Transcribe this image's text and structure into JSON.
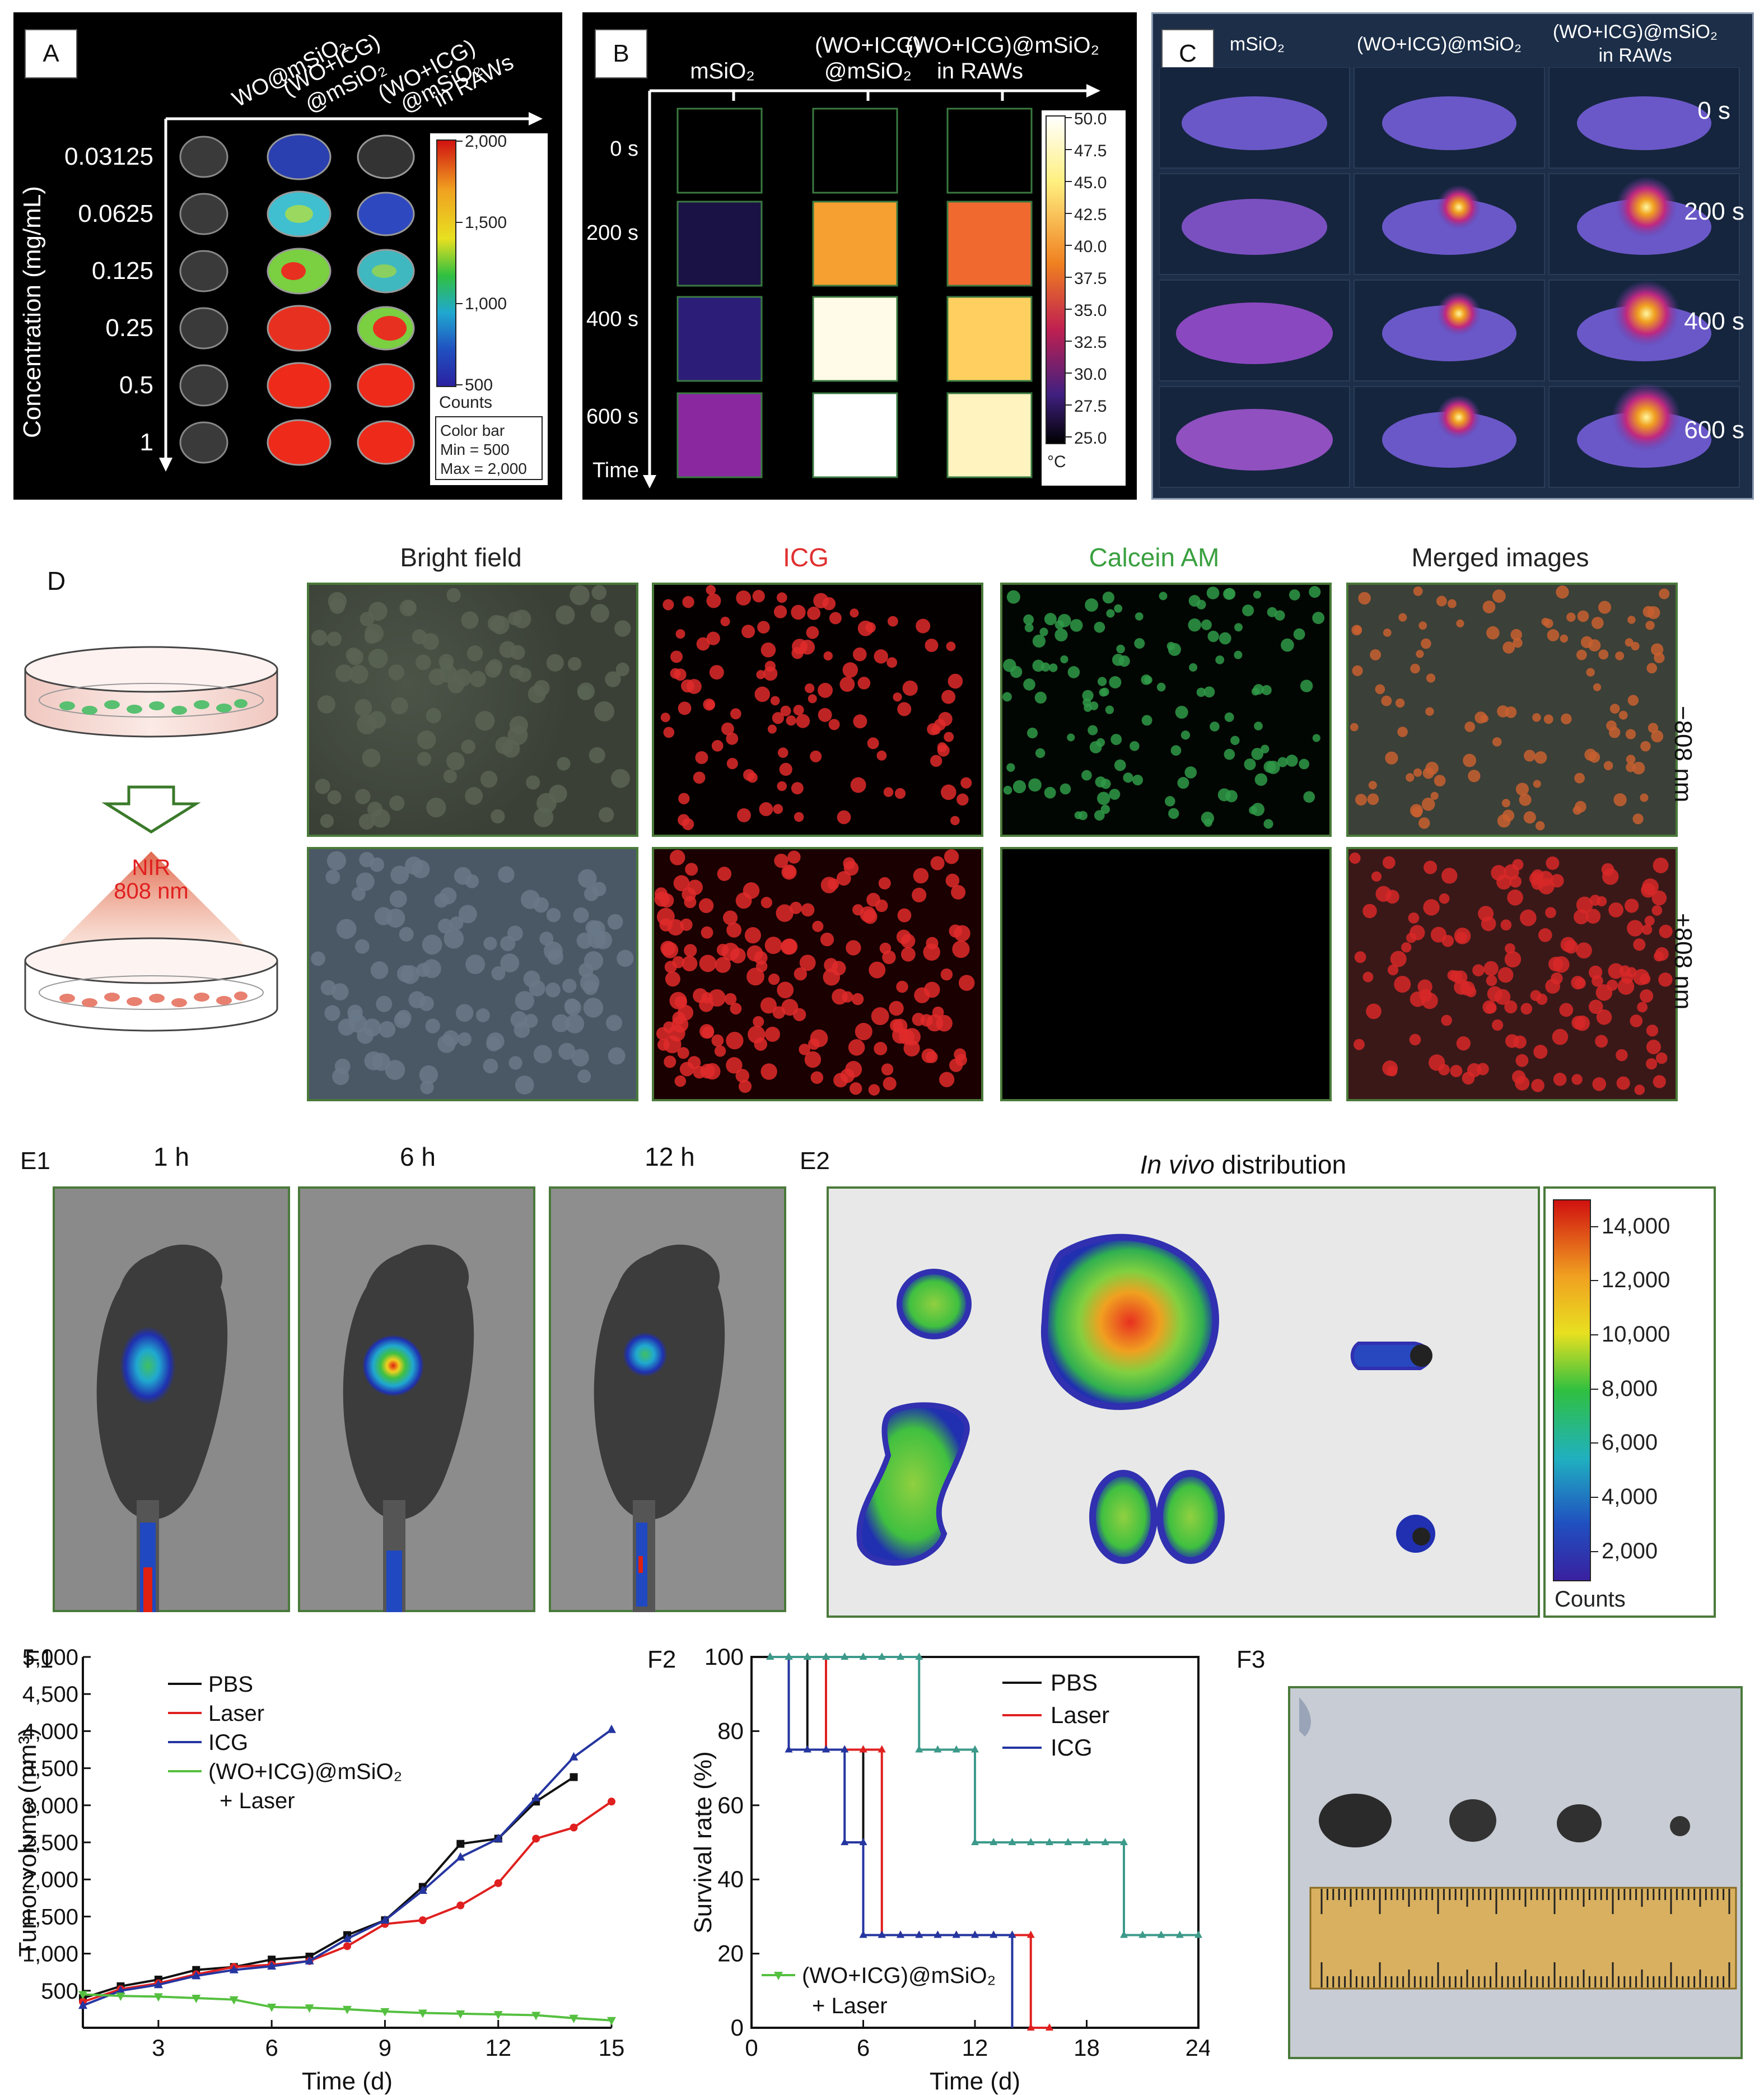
{
  "panelA": {
    "letter": "A",
    "columns": [
      "WO@mSiO₂",
      "(WO+ICG)\n@mSiO₂",
      "(WO+ICG)\n@mSiO₂\nin RAWs"
    ],
    "col1": "WO@mSiO₂",
    "col2a": "(WO+ICG)",
    "col2b": "@mSiO₂",
    "col3a": "(WO+ICG)",
    "col3b": "@mSiO₂",
    "col3c": "in RAWs",
    "ylabel": "Concentration (mg/mL)",
    "rows": [
      "0.03125",
      "0.0625",
      "0.125",
      "0.25",
      "0.5",
      "1"
    ],
    "colorbar_ticks": [
      "2,000",
      "1,500",
      "1,000",
      "500"
    ],
    "counts": "Counts",
    "legend_line1": "Color bar",
    "legend_line2": "Min = 500",
    "legend_line3": "Max = 2,000"
  },
  "panelB": {
    "letter": "B",
    "col1": "mSiO₂",
    "col2a": "(WO+ICG)",
    "col2b": "@mSiO₂",
    "col3a": "(WO+ICG)@mSiO₂",
    "col3b": "in RAWs",
    "rows": [
      "0 s",
      "200 s",
      "400 s",
      "600 s"
    ],
    "time": "Time",
    "colorbar_ticks": [
      "50.0",
      "47.5",
      "45.0",
      "42.5",
      "40.0",
      "37.5",
      "35.0",
      "32.5",
      "30.0",
      "27.5",
      "25.0"
    ],
    "unit": "°C"
  },
  "panelC": {
    "letter": "C",
    "col1": "mSiO₂",
    "col2": "(WO+ICG)@mSiO₂",
    "col3a": "(WO+ICG)@mSiO₂",
    "col3b": "in RAWs",
    "rows": [
      "0 s",
      "200 s",
      "400 s",
      "600 s"
    ]
  },
  "panelD": {
    "letter": "D",
    "headers": [
      "Bright field",
      "ICG",
      "Calcein AM",
      "Merged images"
    ],
    "header_colors": [
      "#222222",
      "#e03030",
      "#3aa040",
      "#222222"
    ],
    "row_minus": "−808 nm",
    "row_plus": "+808 nm",
    "nir_line1": "NIR",
    "nir_line2": "808 nm"
  },
  "panelE1": {
    "letter": "E1",
    "times": [
      "1 h",
      "6 h",
      "12 h"
    ]
  },
  "panelE2": {
    "letter": "E2",
    "title_italic": "In vivo",
    "title_rest": " distribution",
    "colorbar_ticks": [
      "14,000",
      "12,000",
      "10,000",
      "8,000",
      "6,000",
      "4,000",
      "2,000"
    ],
    "counts": "Counts"
  },
  "panelF3": {
    "letter": "F3"
  },
  "chart_data": [
    {
      "panel": "F1",
      "type": "line",
      "xlabel": "Time (d)",
      "ylabel": "Tumor volume (mm³)",
      "xlim": [
        1,
        15
      ],
      "ylim": [
        0,
        5000
      ],
      "xticks": [
        "3",
        "6",
        "9",
        "12",
        "15"
      ],
      "yticks": [
        "500",
        "1,000",
        "1,500",
        "2,000",
        "2,500",
        "3,000",
        "3,500",
        "4,000",
        "4,500",
        "5,000"
      ],
      "x": [
        1,
        2,
        3,
        4,
        5,
        6,
        7,
        8,
        9,
        10,
        11,
        12,
        13,
        14,
        15
      ],
      "series": [
        {
          "name": "PBS",
          "color": "#111111",
          "marker": "square",
          "values": [
            400,
            560,
            650,
            780,
            820,
            920,
            960,
            1250,
            1450,
            1900,
            2480,
            2550,
            3050,
            3380,
            null
          ]
        },
        {
          "name": "Laser",
          "color": "#e02020",
          "marker": "circle",
          "values": [
            350,
            520,
            600,
            720,
            820,
            850,
            900,
            1100,
            1400,
            1450,
            1650,
            1950,
            2550,
            2700,
            3050
          ]
        },
        {
          "name": "ICG",
          "color": "#2535a0",
          "marker": "triangle",
          "values": [
            300,
            500,
            580,
            700,
            780,
            830,
            900,
            1200,
            1450,
            1850,
            2300,
            2550,
            3100,
            3650,
            4020
          ]
        },
        {
          "name": "(WO+ICG)@mSiO₂\n+ Laser",
          "color": "#55c040",
          "marker": "triangle-down",
          "values": [
            450,
            430,
            420,
            400,
            380,
            280,
            270,
            250,
            220,
            200,
            190,
            180,
            170,
            130,
            100
          ]
        }
      ],
      "legend_labels": [
        "PBS",
        "Laser",
        "ICG",
        "(WO+ICG)@mSiO₂",
        "+ Laser"
      ]
    },
    {
      "panel": "F2",
      "type": "line",
      "xlabel": "Time (d)",
      "ylabel": "Survival rate (%)",
      "xlim": [
        0,
        24
      ],
      "ylim": [
        0,
        100
      ],
      "xticks": [
        "0",
        "6",
        "12",
        "18",
        "24"
      ],
      "yticks": [
        "0",
        "20",
        "40",
        "60",
        "80",
        "100"
      ],
      "series": [
        {
          "name": "PBS",
          "color": "#111111",
          "steps": [
            [
              1,
              100
            ],
            [
              3,
              100
            ],
            [
              3,
              75
            ],
            [
              6,
              75
            ],
            [
              6,
              50
            ],
            [
              6,
              25
            ],
            [
              14,
              25
            ],
            [
              14,
              0
            ]
          ]
        },
        {
          "name": "Laser",
          "color": "#e02020",
          "steps": [
            [
              1,
              100
            ],
            [
              4,
              100
            ],
            [
              4,
              75
            ],
            [
              7,
              75
            ],
            [
              7,
              50
            ],
            [
              7,
              25
            ],
            [
              15,
              25
            ],
            [
              15,
              0
            ],
            [
              16,
              0
            ]
          ]
        },
        {
          "name": "ICG",
          "color": "#2535a0",
          "steps": [
            [
              1,
              100
            ],
            [
              2,
              100
            ],
            [
              2,
              75
            ],
            [
              5,
              75
            ],
            [
              5,
              50
            ],
            [
              6,
              50
            ],
            [
              6,
              25
            ],
            [
              14,
              25
            ],
            [
              14,
              0
            ]
          ]
        },
        {
          "name": "(WO+ICG)@mSiO₂\n+ Laser",
          "color": "#3c9a8a",
          "steps": [
            [
              1,
              100
            ],
            [
              9,
              100
            ],
            [
              9,
              75
            ],
            [
              12,
              75
            ],
            [
              12,
              50
            ],
            [
              20,
              50
            ],
            [
              20,
              25
            ],
            [
              24,
              25
            ]
          ]
        }
      ],
      "legend_labels": [
        "PBS",
        "Laser",
        "ICG",
        "(WO+ICG)@mSiO₂",
        "+ Laser"
      ]
    }
  ]
}
